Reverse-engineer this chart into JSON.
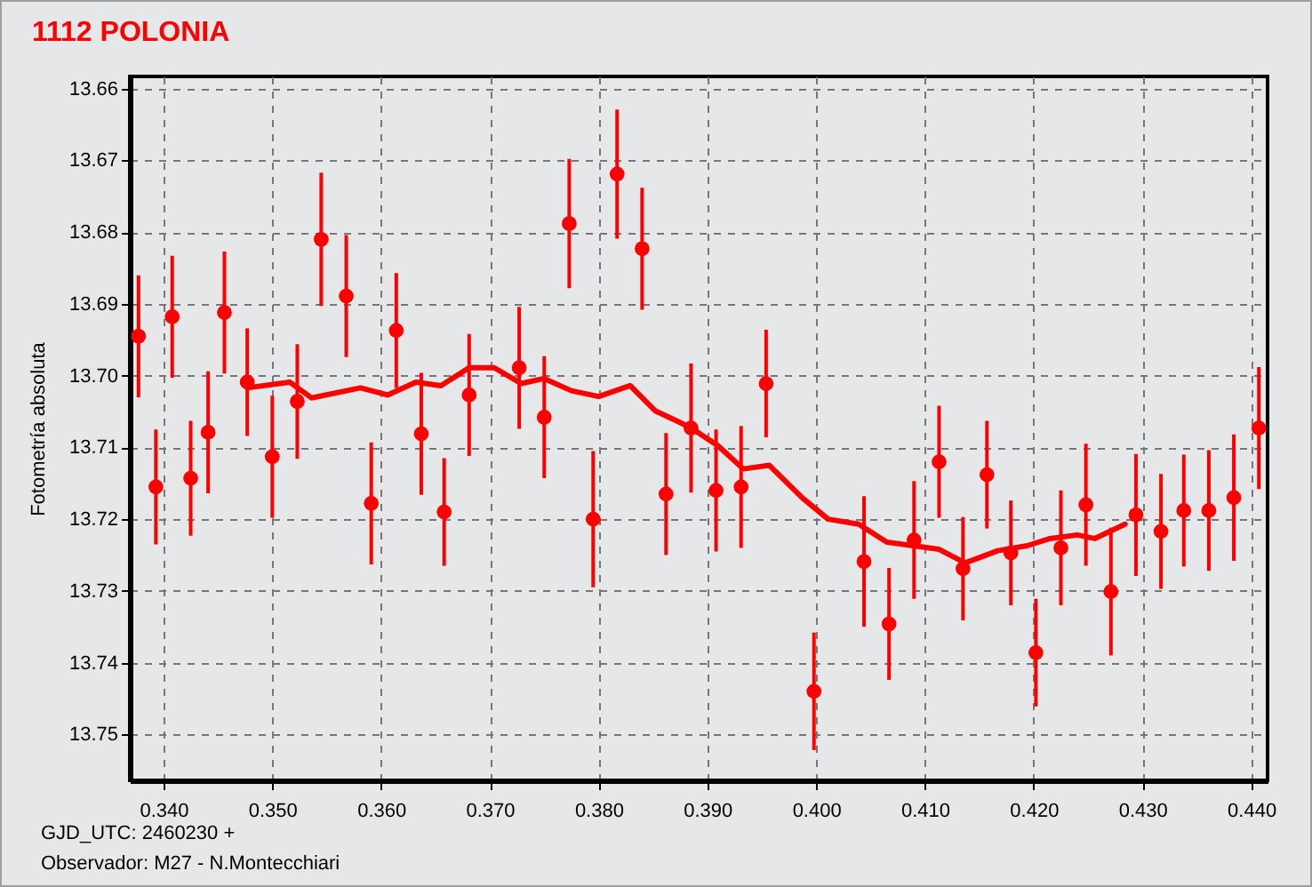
{
  "chart_data": {
    "type": "scatter",
    "title": "1112 POLONIA",
    "ylabel": "Fotometría absoluta",
    "annotations": [
      "GJD_UTC: 2460230 +",
      "Observador: M27 - N.Montecchiari"
    ],
    "x": [
      0.3377,
      0.3393,
      0.3408,
      0.3425,
      0.3441,
      0.3456,
      0.3477,
      0.35,
      0.3523,
      0.3545,
      0.3568,
      0.3591,
      0.3614,
      0.3637,
      0.3658,
      0.3681,
      0.3727,
      0.375,
      0.3773,
      0.3795,
      0.3817,
      0.384,
      0.3862,
      0.3885,
      0.3908,
      0.3931,
      0.3954,
      0.3998,
      0.4044,
      0.4067,
      0.409,
      0.4113,
      0.4135,
      0.4157,
      0.4179,
      0.4202,
      0.4225,
      0.4248,
      0.4271,
      0.4294,
      0.4317,
      0.4338,
      0.4361,
      0.4384,
      0.4407
    ],
    "series": [
      {
        "color": "#ff0000",
        "marker": "circle",
        "values": [
          13.6945,
          13.7155,
          13.6918,
          13.7143,
          13.7079,
          13.6912,
          13.7009,
          13.7113,
          13.7036,
          13.681,
          13.6889,
          13.7178,
          13.6937,
          13.7081,
          13.719,
          13.7027,
          13.6989,
          13.7058,
          13.6788,
          13.72,
          13.6719,
          13.6823,
          13.7165,
          13.7073,
          13.716,
          13.7155,
          13.7011,
          13.744,
          13.7259,
          13.7346,
          13.7229,
          13.712,
          13.7269,
          13.7138,
          13.7247,
          13.7386,
          13.724,
          13.718,
          13.7301,
          13.7194,
          13.7217,
          13.7188,
          13.7188,
          13.717,
          13.7073
        ],
        "errors": [
          0.0085,
          0.008,
          0.0085,
          0.008,
          0.0085,
          0.0085,
          0.0075,
          0.0085,
          0.008,
          0.0093,
          0.0085,
          0.0085,
          0.008,
          0.0085,
          0.0075,
          0.0085,
          0.0085,
          0.0085,
          0.009,
          0.0095,
          0.009,
          0.0085,
          0.0085,
          0.009,
          0.0085,
          0.0085,
          0.0075,
          0.0082,
          0.0091,
          0.0078,
          0.0082,
          0.0078,
          0.0072,
          0.0075,
          0.0073,
          0.0075,
          0.008,
          0.0085,
          0.0089,
          0.0085,
          0.008,
          0.0078,
          0.0084,
          0.0088,
          0.0085
        ]
      },
      {
        "type": "line",
        "color": "#ff0000",
        "marker": "none",
        "line_style": "solid",
        "x": [
          0.3477,
          0.3516,
          0.3536,
          0.3581,
          0.3606,
          0.3632,
          0.3655,
          0.3681,
          0.3704,
          0.3729,
          0.375,
          0.3775,
          0.38,
          0.3829,
          0.3852,
          0.3873,
          0.3885,
          0.391,
          0.3933,
          0.3957,
          0.3987,
          0.4011,
          0.4039,
          0.4065,
          0.4113,
          0.4137,
          0.4167,
          0.4194,
          0.4215,
          0.424,
          0.4256,
          0.4284
        ],
        "values": [
          13.7017,
          13.7009,
          13.7031,
          13.7017,
          13.7027,
          13.7009,
          13.7014,
          13.6989,
          13.6989,
          13.7011,
          13.7004,
          13.7021,
          13.7029,
          13.7014,
          13.7049,
          13.7064,
          13.7073,
          13.7098,
          13.713,
          13.7125,
          13.717,
          13.72,
          13.7207,
          13.7232,
          13.7242,
          13.7261,
          13.7244,
          13.7237,
          13.7227,
          13.7222,
          13.7227,
          13.7207
        ]
      }
    ],
    "xlim": [
      0.3369,
      0.4415
    ],
    "xticks": [
      {
        "value": 0.34,
        "label": "0.340"
      },
      {
        "value": 0.35,
        "label": "0.350"
      },
      {
        "value": 0.36,
        "label": "0.360"
      },
      {
        "value": 0.37,
        "label": "0.370"
      },
      {
        "value": 0.38,
        "label": "0.380"
      },
      {
        "value": 0.39,
        "label": "0.390"
      },
      {
        "value": 0.4,
        "label": "0.400"
      },
      {
        "value": 0.41,
        "label": "0.410"
      },
      {
        "value": 0.42,
        "label": "0.420"
      },
      {
        "value": 0.43,
        "label": "0.430"
      },
      {
        "value": 0.44,
        "label": "0.440"
      }
    ],
    "ylim": [
      13.7564,
      13.6583
    ],
    "yticks": [
      13.66,
      13.67,
      13.68,
      13.69,
      {
        "value": 13.7,
        "label": "13.70"
      },
      13.71,
      13.72,
      13.73,
      13.74,
      13.75
    ],
    "grid": true
  }
}
